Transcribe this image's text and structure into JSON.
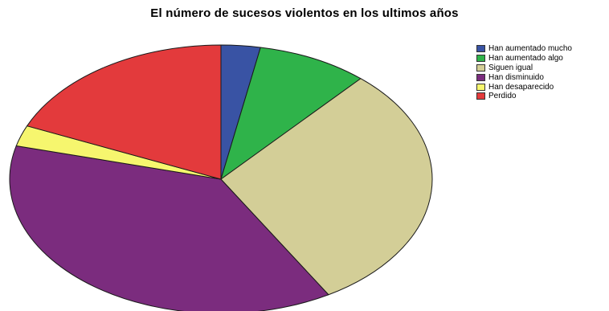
{
  "chart_data": {
    "type": "pie",
    "title": "El número de sucesos violentos en los ultimos años",
    "categories": [
      "Han aumentado mucho",
      "Han aumentado algo",
      "Siguen igual",
      "Han disminuido",
      "Han desaparecido",
      "Perdido"
    ],
    "values": [
      3.0,
      8.5,
      30.0,
      37.5,
      2.5,
      18.5
    ],
    "unit": "%",
    "colors": [
      "#3953a4",
      "#2fb34a",
      "#d3ce97",
      "#7b2c7e",
      "#f6f66e",
      "#e33a3c"
    ],
    "legend_position": "top-right",
    "start_angle": "12 o'clock",
    "direction": "clockwise"
  }
}
